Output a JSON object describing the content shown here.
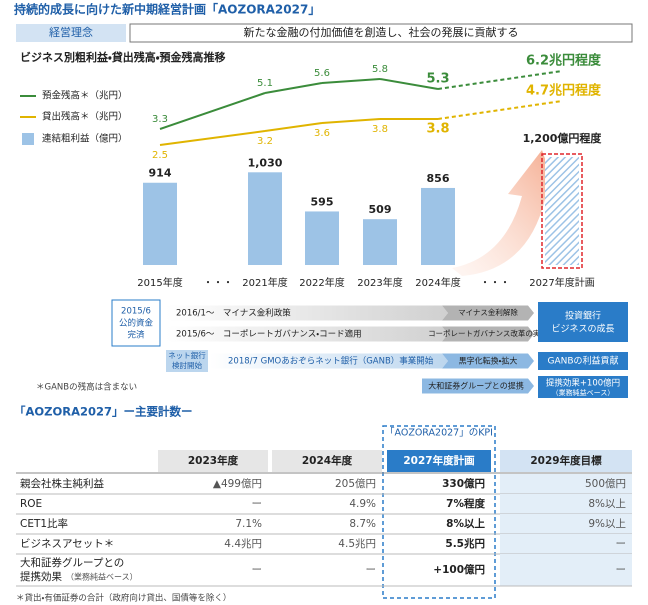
{
  "header": {
    "title": "持続的成長に向けた新中期経営計画「AOZORA2027」",
    "philosophy_label": "経営理念",
    "philosophy": "新たな金融の付加価値を創造し、社会の発展に貢献する"
  },
  "chart_data": {
    "type": "bar",
    "title": "ビジネス別粗利益・貸出残高・預金残高推移",
    "categories": [
      "2015年度",
      "・・・",
      "2021年度",
      "2022年度",
      "2023年度",
      "2024年度",
      "・・・",
      "2027年度計画"
    ],
    "series": [
      {
        "name": "預金残高＊（兆円）",
        "type": "line",
        "color": "#3b8c3b",
        "values": [
          3.3,
          null,
          5.1,
          5.6,
          5.8,
          5.3,
          null,
          6.2
        ],
        "value_labels": [
          "3.3",
          null,
          "5.1",
          "5.6",
          "5.8",
          "5.3",
          null,
          "6.2兆円程度"
        ]
      },
      {
        "name": "貸出残高＊（兆円）",
        "type": "line",
        "color": "#e0b400",
        "values": [
          2.5,
          null,
          3.2,
          3.6,
          3.8,
          3.8,
          null,
          4.7
        ],
        "value_labels": [
          "2.5",
          null,
          "3.2",
          "3.6",
          "3.8",
          "3.8",
          null,
          "4.7兆円程度"
        ]
      },
      {
        "name": "連結粗利益（億円）",
        "type": "bar",
        "color": "#9dc3e6",
        "values": [
          914,
          null,
          1030,
          595,
          509,
          856,
          null,
          1200
        ],
        "value_labels": [
          "914",
          null,
          "1,030",
          "595",
          "509",
          "856",
          null,
          "1,200億円程度"
        ]
      }
    ]
  },
  "timeline": {
    "start": [
      "2015/6",
      "公的資金",
      "完済"
    ],
    "policy": [
      {
        "text": "2016/1～　マイナス金利政策",
        "result": "マイナス金利解除"
      },
      {
        "text": "2015/6～　コーポレートガバナンス・コード適用",
        "result": "コーポレートガバナンス改革の実践"
      }
    ],
    "policy_outcome": [
      "投資銀行",
      "ビジネスの成長"
    ],
    "ganb": {
      "start": [
        "ネット銀行",
        "検討開始"
      ],
      "text": "2018/7 GMOあおぞらネット銀行（GANB）事業開始",
      "result": "黒字化転換・拡大",
      "outcome": "GANBの利益貢献"
    },
    "daiwa": {
      "text": "大和証券グループとの提携",
      "outcome": "提携効果+100億円",
      "outcome_note": "（業務純益ベース）"
    },
    "note": "＊GANBの残高は含まない"
  },
  "kpi": {
    "title": "「AOZORA2027」ー主要計数ー",
    "kpi_label": "「AOZORA2027」のKPI",
    "columns": [
      "2023年度",
      "2024年度",
      "2027年度計画",
      "2029年度目標"
    ],
    "rows": [
      {
        "label": [
          "親会社株主純利益"
        ],
        "cells": [
          "▲499億円",
          "205億円",
          "330億円",
          "500億円"
        ]
      },
      {
        "label": [
          "ROE"
        ],
        "cells": [
          "ー",
          "4.9%",
          "7%程度",
          "8%以上"
        ]
      },
      {
        "label": [
          "CET1比率"
        ],
        "cells": [
          "7.1%",
          "8.7%",
          "8%以上",
          "9%以上"
        ]
      },
      {
        "label": [
          "ビジネスアセット＊"
        ],
        "cells": [
          "4.4兆円",
          "4.5兆円",
          "5.5兆円",
          "ー"
        ]
      },
      {
        "label": [
          "大和証券グループとの",
          "提携効果"
        ],
        "label_note": "（業務純益ベース）",
        "cells": [
          "ー",
          "ー",
          "+100億円",
          "ー"
        ]
      }
    ],
    "footnote": "＊貸出・有価証券の合計（政府向け貸出、国債等を除く）"
  }
}
